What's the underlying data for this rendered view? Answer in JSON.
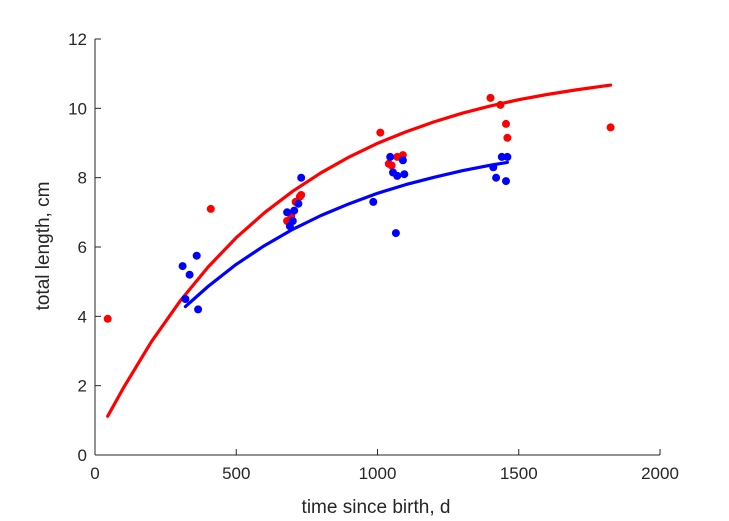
{
  "chart_data": {
    "type": "scatter",
    "xlabel": "time since birth, d",
    "ylabel": "total length, cm",
    "xlim": [
      0,
      2000
    ],
    "ylim": [
      0,
      12
    ],
    "x_ticks": [
      "0",
      "500",
      "1000",
      "1500",
      "2000"
    ],
    "y_ticks": [
      "0",
      "2",
      "4",
      "6",
      "8",
      "10",
      "12"
    ],
    "grid": false,
    "legend": "none",
    "series": [
      {
        "color": "#ff0000",
        "marker": "circle",
        "points": [
          [
            45,
            3.93
          ],
          [
            410,
            7.1
          ],
          [
            680,
            6.75
          ],
          [
            695,
            6.9
          ],
          [
            710,
            7.3
          ],
          [
            725,
            7.45
          ],
          [
            730,
            7.5
          ],
          [
            1010,
            9.3
          ],
          [
            1040,
            8.4
          ],
          [
            1050,
            8.35
          ],
          [
            1070,
            8.6
          ],
          [
            1090,
            8.65
          ],
          [
            1400,
            10.3
          ],
          [
            1435,
            10.1
          ],
          [
            1455,
            9.55
          ],
          [
            1460,
            9.15
          ],
          [
            1825,
            9.45
          ]
        ],
        "curve": [
          [
            45,
            1.12
          ],
          [
            100,
            1.93
          ],
          [
            200,
            3.27
          ],
          [
            300,
            4.43
          ],
          [
            400,
            5.42
          ],
          [
            500,
            6.27
          ],
          [
            600,
            6.99
          ],
          [
            700,
            7.61
          ],
          [
            800,
            8.14
          ],
          [
            900,
            8.6
          ],
          [
            1000,
            8.99
          ],
          [
            1100,
            9.32
          ],
          [
            1200,
            9.61
          ],
          [
            1300,
            9.86
          ],
          [
            1400,
            10.07
          ],
          [
            1500,
            10.25
          ],
          [
            1600,
            10.4
          ],
          [
            1700,
            10.53
          ],
          [
            1825,
            10.67
          ]
        ]
      },
      {
        "color": "#0000ff",
        "marker": "circle",
        "points": [
          [
            310,
            5.45
          ],
          [
            320,
            4.5
          ],
          [
            335,
            5.2
          ],
          [
            360,
            5.75
          ],
          [
            365,
            4.2
          ],
          [
            680,
            7.0
          ],
          [
            690,
            6.6
          ],
          [
            700,
            6.75
          ],
          [
            705,
            7.05
          ],
          [
            720,
            7.25
          ],
          [
            730,
            8.0
          ],
          [
            985,
            7.3
          ],
          [
            1045,
            8.6
          ],
          [
            1055,
            8.15
          ],
          [
            1065,
            6.4
          ],
          [
            1070,
            8.05
          ],
          [
            1090,
            8.5
          ],
          [
            1095,
            8.1
          ],
          [
            1410,
            8.3
          ],
          [
            1420,
            8.0
          ],
          [
            1440,
            8.6
          ],
          [
            1455,
            7.9
          ],
          [
            1460,
            8.6
          ]
        ],
        "curve": [
          [
            320,
            4.28
          ],
          [
            400,
            4.86
          ],
          [
            500,
            5.5
          ],
          [
            600,
            6.04
          ],
          [
            700,
            6.51
          ],
          [
            800,
            6.91
          ],
          [
            900,
            7.25
          ],
          [
            1000,
            7.55
          ],
          [
            1100,
            7.8
          ],
          [
            1200,
            8.01
          ],
          [
            1300,
            8.2
          ],
          [
            1400,
            8.36
          ],
          [
            1460,
            8.44
          ]
        ]
      }
    ]
  }
}
